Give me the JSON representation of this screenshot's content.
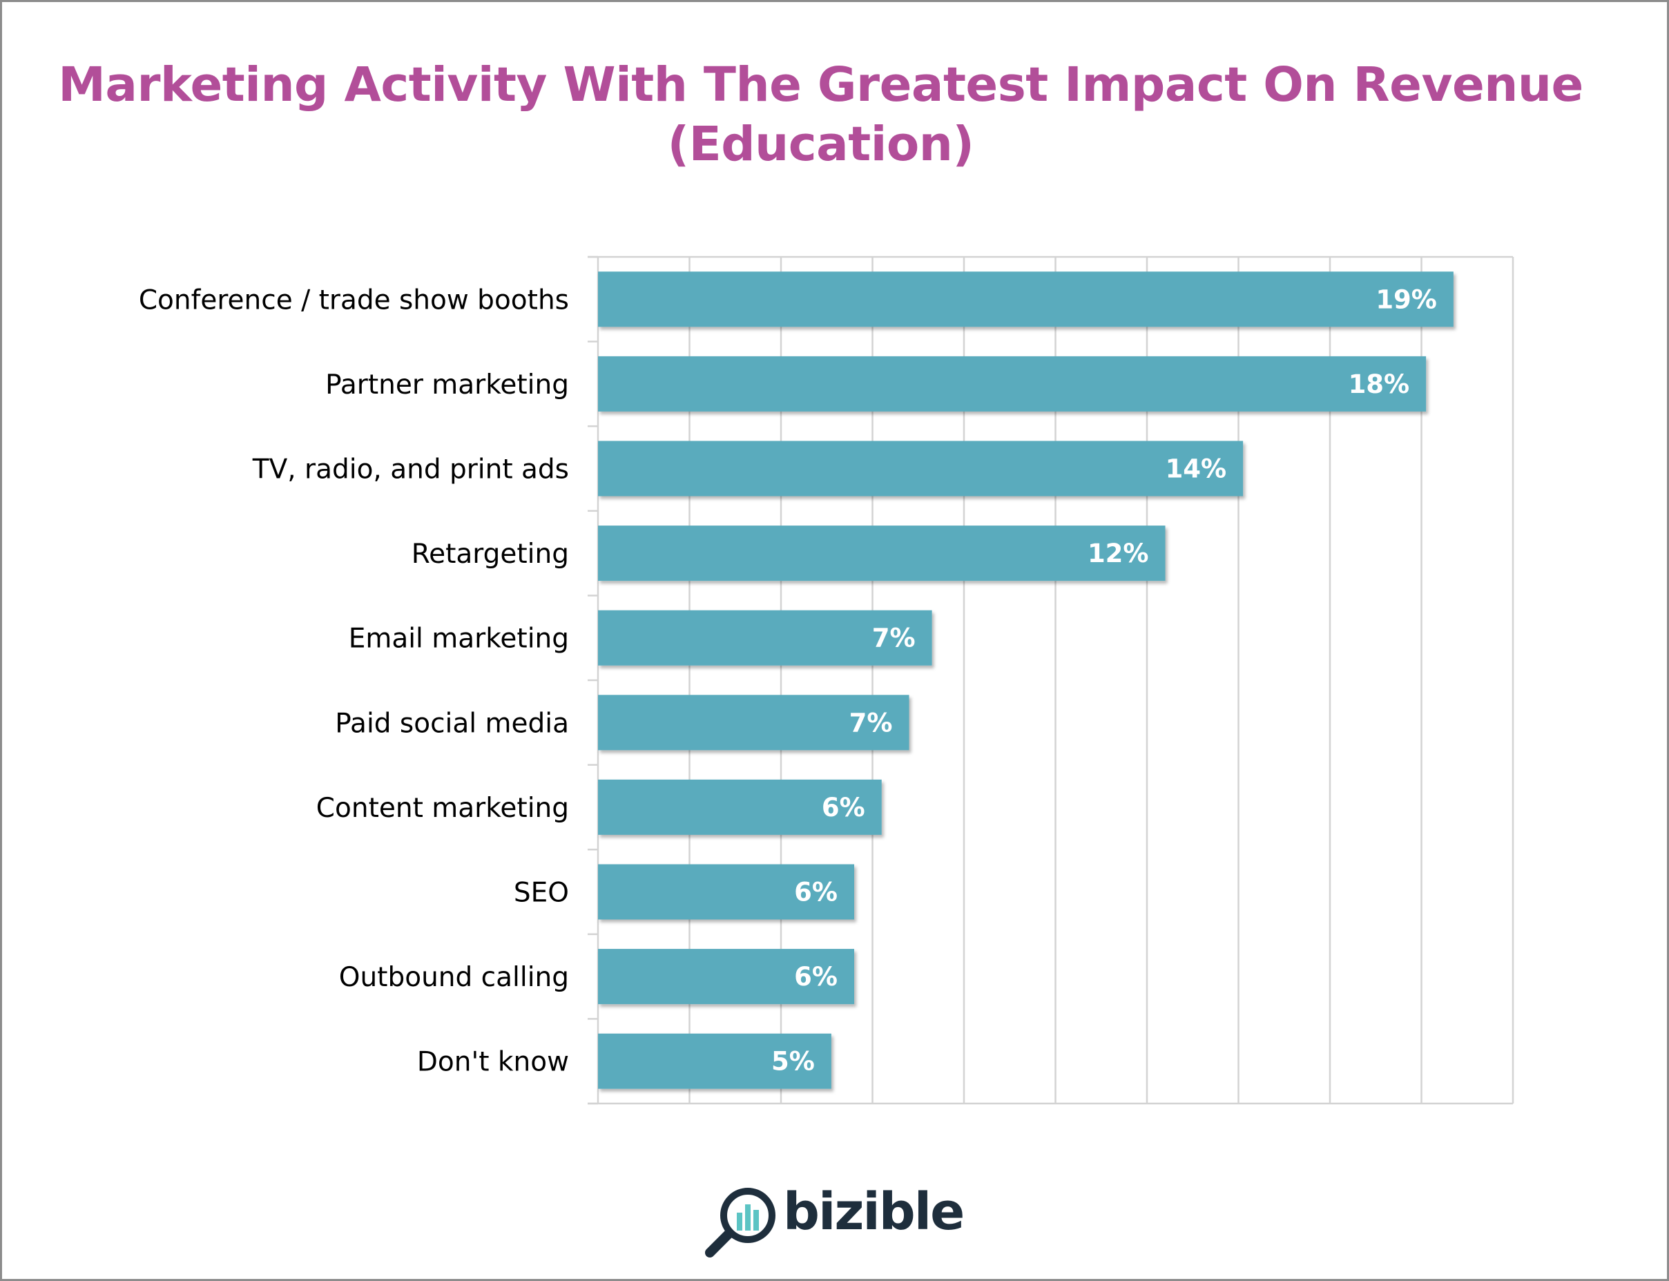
{
  "title_line1": "Marketing Activity With The Greatest Impact On Revenue",
  "title_line2": "(Education)",
  "brand": "bizible",
  "colors": {
    "title": "#b24e99",
    "bar": "#5aabbd",
    "gridline": "#d3d3d3",
    "logo_dark": "#1e2e3c",
    "logo_teal": "#5cc4c4"
  },
  "chart_data": {
    "type": "bar",
    "orientation": "horizontal",
    "title": "Marketing Activity With The Greatest Impact On Revenue (Education)",
    "categories": [
      "Conference / trade show booths",
      "Partner marketing",
      "TV, radio, and print ads",
      "Retargeting",
      "Email marketing",
      "Paid social media",
      "Content marketing",
      "SEO",
      "Outbound calling",
      "Don't know"
    ],
    "values": [
      18.7,
      18.1,
      14.1,
      12.4,
      7.3,
      6.8,
      6.2,
      5.6,
      5.6,
      5.1
    ],
    "value_labels": [
      "19%",
      "18%",
      "14%",
      "12%",
      "7%",
      "7%",
      "6%",
      "6%",
      "6%",
      "5%"
    ],
    "unit": "%",
    "xlim": [
      0,
      20
    ],
    "xgrid_step": 2,
    "grid": true,
    "axis_tick_labels_shown": false,
    "legend": "none"
  }
}
